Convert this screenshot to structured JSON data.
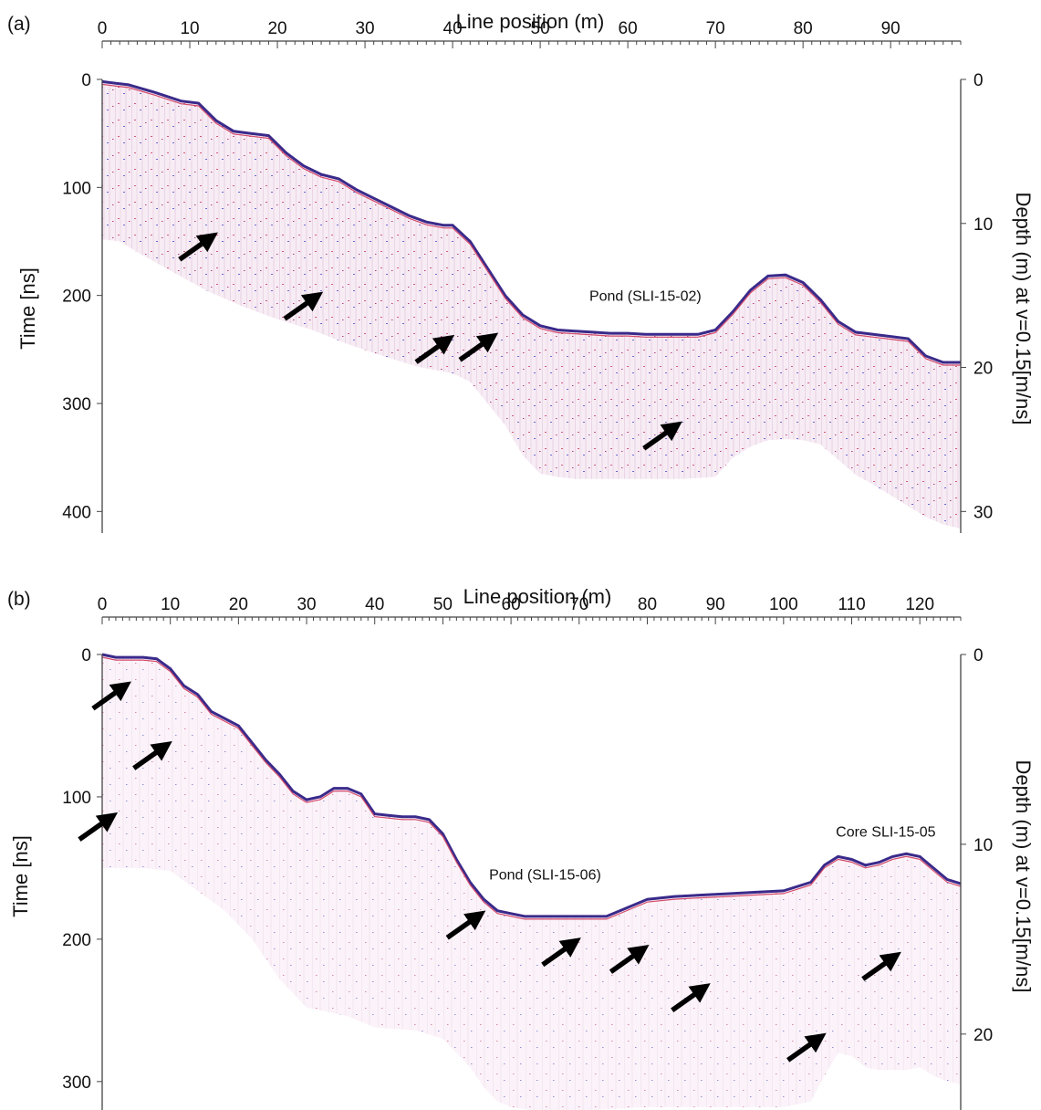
{
  "chart_data": [
    {
      "type": "radargram",
      "panel_label": "(a)",
      "xlabel": "Line position (m)",
      "ylabel": "Time [ns]",
      "y2label": "Depth (m) at v=0.15[m/ns]",
      "xlim": [
        0,
        98
      ],
      "ylim": [
        0,
        420
      ],
      "y2lim": [
        0,
        31.5
      ],
      "x_ticks": [
        0,
        10,
        20,
        30,
        40,
        50,
        60,
        70,
        80,
        90
      ],
      "y_ticks": [
        0,
        100,
        200,
        300,
        400
      ],
      "y2_ticks": [
        0,
        10,
        20,
        30
      ],
      "surface": {
        "x": [
          0,
          3,
          6,
          9,
          11,
          13,
          15,
          17,
          19,
          21,
          23,
          25,
          27,
          29,
          31,
          33,
          35,
          37,
          39,
          40,
          42,
          44,
          46,
          48,
          50,
          52,
          54,
          56,
          58,
          60,
          62,
          64,
          66,
          68,
          70,
          72,
          74,
          76,
          78,
          80,
          82,
          84,
          86,
          88,
          90,
          92,
          94,
          96,
          98
        ],
        "t": [
          2,
          5,
          12,
          20,
          22,
          38,
          48,
          50,
          52,
          68,
          80,
          88,
          92,
          102,
          110,
          118,
          126,
          132,
          135,
          135,
          150,
          175,
          200,
          218,
          228,
          232,
          233,
          234,
          235,
          235,
          236,
          236,
          236,
          236,
          232,
          215,
          195,
          182,
          181,
          188,
          204,
          224,
          234,
          236,
          238,
          240,
          256,
          262,
          262
        ]
      },
      "base": {
        "x": [
          0,
          2,
          4,
          8,
          12,
          16,
          20,
          24,
          28,
          32,
          36,
          40,
          42,
          44,
          46,
          48,
          50,
          52,
          54,
          58,
          62,
          66,
          70,
          72,
          74,
          76,
          78,
          80,
          82,
          84,
          86,
          88,
          90,
          92,
          94,
          96,
          98
        ],
        "t": [
          148,
          150,
          160,
          178,
          196,
          210,
          222,
          232,
          245,
          256,
          266,
          272,
          280,
          300,
          320,
          348,
          365,
          368,
          370,
          370,
          370,
          370,
          368,
          350,
          340,
          334,
          333,
          334,
          338,
          352,
          366,
          375,
          385,
          395,
          405,
          412,
          416
        ]
      },
      "annotations": [
        {
          "text": "Pond (SLI-15-02)",
          "x": 62,
          "t": 205
        }
      ],
      "arrows": [
        {
          "x": 13,
          "t": 143
        },
        {
          "x": 25,
          "t": 198
        },
        {
          "x": 40,
          "t": 238
        },
        {
          "x": 45,
          "t": 236
        },
        {
          "x": 66,
          "t": 318
        }
      ]
    },
    {
      "type": "radargram",
      "panel_label": "(b)",
      "xlabel": "Line position (m)",
      "ylabel": "Time [ns]",
      "y2label": "Depth (m) at v=0.15[m/ns]",
      "xlim": [
        0,
        126
      ],
      "ylim": [
        0,
        320
      ],
      "y2lim": [
        0,
        24
      ],
      "x_ticks": [
        0,
        10,
        20,
        30,
        40,
        50,
        60,
        70,
        80,
        90,
        100,
        110,
        120
      ],
      "y_ticks": [
        0,
        100,
        200,
        300
      ],
      "y2_ticks": [
        0,
        10,
        20
      ],
      "surface": {
        "x": [
          0,
          2,
          4,
          6,
          8,
          10,
          12,
          14,
          16,
          18,
          20,
          22,
          24,
          26,
          28,
          30,
          32,
          34,
          36,
          38,
          40,
          42,
          44,
          46,
          48,
          50,
          52,
          54,
          56,
          58,
          60,
          62,
          66,
          70,
          74,
          78,
          80,
          84,
          88,
          92,
          96,
          100,
          104,
          106,
          108,
          110,
          112,
          114,
          116,
          118,
          120,
          122,
          124,
          126
        ],
        "t": [
          0,
          2,
          2,
          2,
          3,
          10,
          22,
          28,
          40,
          45,
          50,
          62,
          74,
          84,
          96,
          102,
          100,
          94,
          94,
          98,
          112,
          113,
          114,
          114,
          116,
          126,
          144,
          160,
          172,
          180,
          182,
          184,
          184,
          184,
          184,
          176,
          172,
          170,
          169,
          168,
          167,
          166,
          160,
          148,
          142,
          144,
          148,
          146,
          142,
          140,
          142,
          150,
          158,
          161
        ]
      },
      "base": {
        "x": [
          0,
          2,
          6,
          10,
          14,
          18,
          22,
          26,
          30,
          36,
          40,
          46,
          50,
          54,
          56,
          58,
          60,
          66,
          72,
          80,
          90,
          100,
          104,
          106,
          108,
          110,
          112,
          114,
          116,
          118,
          120,
          122,
          124,
          126
        ],
        "t": [
          150,
          150,
          150,
          152,
          166,
          180,
          200,
          228,
          248,
          254,
          262,
          264,
          270,
          290,
          304,
          314,
          318,
          322,
          320,
          318,
          318,
          318,
          314,
          296,
          280,
          282,
          290,
          292,
          292,
          292,
          290,
          296,
          300,
          302
        ]
      },
      "annotations": [
        {
          "text": "Pond (SLI-15-06)",
          "x": 65,
          "t": 158
        },
        {
          "text": "Core SLI-15-05",
          "x": 115,
          "t": 128
        }
      ],
      "arrows": [
        {
          "x": 4,
          "t": 20
        },
        {
          "x": 10,
          "t": 62
        },
        {
          "x": 2,
          "t": 112
        },
        {
          "x": 56,
          "t": 181
        },
        {
          "x": 70,
          "t": 200
        },
        {
          "x": 80,
          "t": 205
        },
        {
          "x": 89,
          "t": 232
        },
        {
          "x": 106,
          "t": 267
        },
        {
          "x": 117,
          "t": 210
        }
      ]
    }
  ]
}
